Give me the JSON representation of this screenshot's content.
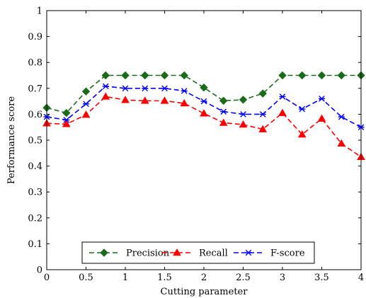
{
  "chart_data": {
    "type": "line",
    "title": "",
    "xlabel": "Cutting parameter",
    "ylabel": "Performance score",
    "xlim": [
      0,
      4
    ],
    "ylim": [
      0,
      1
    ],
    "x_ticks": [
      "0",
      "0.5",
      "1",
      "1.5",
      "2",
      "2.5",
      "3",
      "3.5",
      "4"
    ],
    "y_ticks": [
      "0",
      "0.1",
      "0.2",
      "0.3",
      "0.4",
      "0.5",
      "0.6",
      "0.7",
      "0.8",
      "0.9",
      "1"
    ],
    "grid": false,
    "legend_position": "bottom-center",
    "x": [
      0,
      0.25,
      0.5,
      0.75,
      1,
      1.25,
      1.5,
      1.75,
      2,
      2.25,
      2.5,
      2.75,
      3,
      3.25,
      3.5,
      3.75,
      4
    ],
    "series": [
      {
        "name": "Precision",
        "color": "#1a6b1a",
        "marker": "diamond",
        "values": [
          0.625,
          0.605,
          0.688,
          0.75,
          0.75,
          0.75,
          0.75,
          0.75,
          0.703,
          0.652,
          0.656,
          0.68,
          0.75,
          0.75,
          0.75,
          0.75,
          0.75
        ]
      },
      {
        "name": "Recall",
        "color": "#ff0000",
        "marker": "triangle",
        "values": [
          0.565,
          0.562,
          0.598,
          0.668,
          0.655,
          0.652,
          0.652,
          0.642,
          0.603,
          0.567,
          0.56,
          0.542,
          0.605,
          0.522,
          0.583,
          0.487,
          0.435
        ]
      },
      {
        "name": "F-score",
        "color": "#0000ff",
        "marker": "star",
        "values": [
          0.59,
          0.578,
          0.64,
          0.708,
          0.7,
          0.7,
          0.7,
          0.69,
          0.65,
          0.61,
          0.6,
          0.6,
          0.668,
          0.62,
          0.66,
          0.59,
          0.55
        ]
      }
    ]
  }
}
